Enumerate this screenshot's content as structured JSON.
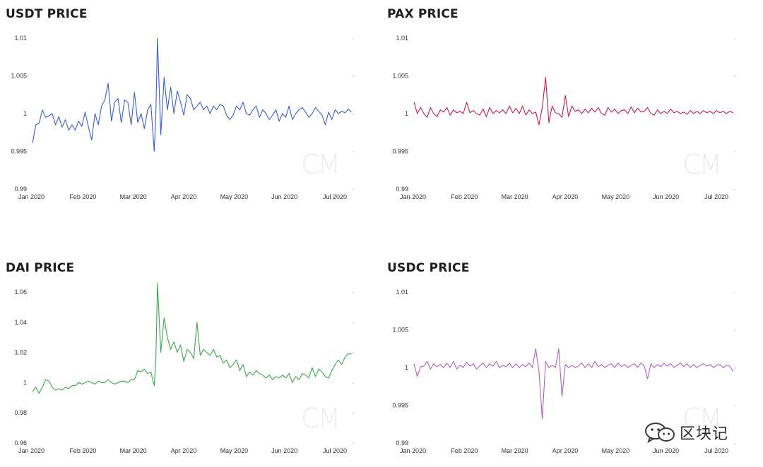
{
  "chart_data": [
    {
      "type": "line",
      "title": "USDT PRICE",
      "xlabel": "",
      "ylabel": "",
      "color": "#3a5fc8",
      "y_ticks": [
        "1.01",
        "1.005",
        "1",
        "0.995",
        "0.99"
      ],
      "ylim": [
        0.99,
        1.01
      ],
      "x_ticks": [
        "Jan 2020",
        "Feb 2020",
        "Mar 2020",
        "Apr 2020",
        "May 2020",
        "Jun 2020",
        "Jul 2020"
      ],
      "x_range_days": [
        0,
        195
      ],
      "watermark": "CM",
      "series": [
        {
          "x": [
            0,
            2,
            4,
            6,
            8,
            10,
            12,
            14,
            16,
            18,
            20,
            22,
            24,
            26,
            28,
            30,
            32,
            34,
            36,
            38,
            40,
            42,
            44,
            46,
            48,
            50,
            52,
            54,
            56,
            58,
            60,
            62,
            64,
            66,
            68,
            70,
            72,
            74,
            75,
            76,
            78,
            80,
            82,
            84,
            86,
            88,
            90,
            92,
            94,
            96,
            98,
            100,
            102,
            104,
            106,
            108,
            110,
            112,
            114,
            116,
            118,
            120,
            122,
            124,
            126,
            128,
            130,
            132,
            134,
            136,
            138,
            140,
            142,
            144,
            146,
            148,
            150,
            152,
            154,
            156,
            158,
            160,
            162,
            164,
            166,
            168,
            170,
            172,
            174,
            176,
            178,
            180,
            182,
            184,
            186,
            188,
            190,
            192,
            194
          ],
          "y": [
            0.9961,
            0.9985,
            0.9987,
            1.0005,
            0.9995,
            0.9997,
            1.0,
            0.9985,
            0.9996,
            0.9982,
            0.9992,
            0.9978,
            0.9985,
            0.9978,
            0.999,
            0.9983,
            1.0002,
            0.9982,
            0.9965,
            1.0,
            0.9985,
            1.001,
            1.0018,
            1.004,
            0.999,
            1.0015,
            1.002,
            0.9988,
            1.0018,
            1.0015,
            0.9985,
            1.0028,
            0.9988,
            1.0,
            0.998,
            1.0005,
            1.0012,
            0.995,
            1.0,
            1.01,
            0.9972,
            1.0048,
            1.0005,
            1.0035,
            1.0,
            1.003,
            1.0015,
            0.9998,
            1.0025,
            1.002,
            1.0005,
            1.001,
            1.0015,
            1.0005,
            1.001,
            1.0,
            1.001,
            1.0005,
            1.0012,
            1.001,
            0.9998,
            0.9992,
            0.9998,
            1.001,
            1.0005,
            1.0015,
            1.0,
            0.9998,
            1.0005,
            1.001,
            0.9995,
            1.0005,
            1.0,
            0.9992,
            0.9998,
            1.0005,
            0.999,
            1.0,
            0.9995,
            1.001,
            0.9992,
            1.0,
            1.0005,
            1.0008,
            1.0002,
            0.9995,
            1.0,
            1.0008,
            1.0003,
            0.9998,
            0.9985,
            1.0002,
            0.9992,
            1.0005,
            1.0,
            1.0003,
            1.0001,
            1.0006,
            1.0002
          ]
        }
      ]
    },
    {
      "type": "line",
      "title": "PAX PRICE",
      "xlabel": "",
      "ylabel": "",
      "color": "#c81e4a",
      "y_ticks": [
        "1.01",
        "1.005",
        "1",
        "0.995",
        "0.99"
      ],
      "ylim": [
        0.99,
        1.01
      ],
      "x_ticks": [
        "Jan 2020",
        "Feb 2020",
        "Mar 2020",
        "Apr 2020",
        "May 2020",
        "Jun 2020",
        "Jul 2020"
      ],
      "x_range_days": [
        0,
        195
      ],
      "watermark": "CM",
      "series": [
        {
          "x": [
            0,
            2,
            4,
            6,
            8,
            10,
            12,
            14,
            16,
            18,
            20,
            22,
            24,
            26,
            28,
            30,
            32,
            34,
            36,
            38,
            40,
            42,
            44,
            46,
            48,
            50,
            52,
            54,
            56,
            58,
            60,
            62,
            64,
            66,
            68,
            70,
            72,
            74,
            76,
            78,
            80,
            82,
            84,
            86,
            88,
            90,
            92,
            94,
            96,
            98,
            100,
            102,
            104,
            106,
            108,
            110,
            112,
            114,
            116,
            118,
            120,
            122,
            124,
            126,
            128,
            130,
            132,
            134,
            136,
            138,
            140,
            142,
            144,
            146,
            148,
            150,
            152,
            154,
            156,
            158,
            160,
            162,
            164,
            166,
            168,
            170,
            172,
            174,
            176,
            178,
            180,
            182,
            184,
            186,
            188,
            190,
            192,
            194
          ],
          "y": [
            1.0015,
            1.0,
            1.0008,
            1.0,
            0.9995,
            1.0008,
            1.0,
            0.9996,
            1.0005,
            1.0002,
            1.0008,
            0.9998,
            1.0005,
            1.0001,
            1.0003,
            1.0,
            1.0015,
            1.0001,
            1.0004,
            1.0,
            0.9998,
            1.0006,
            0.9996,
            1.0008,
            1.0,
            1.0004,
            1.0001,
            1.0005,
            1.0,
            1.001,
            1.0001,
            1.0007,
            1.0,
            1.001,
            0.9998,
            1.0005,
            1.0,
            1.0002,
            0.9985,
            1.0008,
            1.0048,
            0.9988,
            1.001,
            1.0001,
            1.0,
            0.9995,
            1.0024,
            0.9996,
            1.001,
            1.0003,
            1.0005,
            1.0,
            1.0006,
            1.0001,
            1.0007,
            1.0002,
            1.0008,
            1.0,
            0.9998,
            1.0008,
            1.0002,
            1.0006,
            1.0,
            1.0004,
            1.0005,
            1.0,
            1.0009,
            1.0001,
            1.0007,
            1.0002,
            1.0003,
            1.0008,
            1.0,
            0.9998,
            1.0005,
            1.0,
            1.0003,
            1.0,
            1.0006,
            1.0001,
            1.0003,
            1.0,
            1.0002,
            0.9999,
            1.0004,
            1.0,
            1.0003,
            1.0,
            1.0004,
            1.0001,
            1.0003,
            1.0,
            1.0004,
            1.0001,
            1.0003,
            1.0,
            1.0003,
            1.0001
          ]
        }
      ]
    },
    {
      "type": "line",
      "title": "DAI PRICE",
      "xlabel": "",
      "ylabel": "",
      "color": "#3aa84a",
      "y_ticks": [
        "1.06",
        "1.04",
        "1.02",
        "1",
        "0.98",
        "0.96"
      ],
      "ylim": [
        0.96,
        1.06
      ],
      "x_ticks": [
        "Jan 2020",
        "Feb 2020",
        "Mar 2020",
        "Apr 2020",
        "May 2020",
        "Jun 2020",
        "Jul 2020"
      ],
      "x_range_days": [
        0,
        195
      ],
      "watermark": "CM",
      "series": [
        {
          "x": [
            0,
            2,
            4,
            6,
            8,
            10,
            12,
            14,
            16,
            18,
            20,
            22,
            24,
            26,
            28,
            30,
            32,
            34,
            36,
            38,
            40,
            42,
            44,
            46,
            48,
            50,
            52,
            54,
            56,
            58,
            60,
            62,
            64,
            66,
            68,
            70,
            72,
            74,
            75,
            76,
            78,
            80,
            82,
            84,
            86,
            88,
            90,
            92,
            94,
            96,
            98,
            100,
            102,
            104,
            106,
            108,
            110,
            112,
            114,
            116,
            118,
            120,
            122,
            124,
            126,
            128,
            130,
            132,
            134,
            136,
            138,
            140,
            142,
            144,
            146,
            148,
            150,
            152,
            154,
            156,
            158,
            160,
            162,
            164,
            166,
            168,
            170,
            172,
            174,
            176,
            178,
            180,
            182,
            184,
            186,
            188,
            190,
            192,
            194
          ],
          "y": [
            0.994,
            0.997,
            0.993,
            0.997,
            1.002,
            1.001,
            0.997,
            0.995,
            0.996,
            0.995,
            0.997,
            0.996,
            0.998,
            0.998,
            1.0,
            0.999,
            1.0,
            1.001,
            1.0,
            0.999,
            1.001,
            1.0,
            1.0,
            1.002,
            1.0,
            0.999,
            1.0,
            1.001,
            1.001,
            1.0,
            1.002,
            1.002,
            1.008,
            1.007,
            1.009,
            1.006,
            1.007,
            0.998,
            1.015,
            1.066,
            1.02,
            1.043,
            1.03,
            1.022,
            1.027,
            1.02,
            1.025,
            1.014,
            1.022,
            1.02,
            1.016,
            1.04,
            1.018,
            1.022,
            1.02,
            1.018,
            1.022,
            1.017,
            1.018,
            1.013,
            1.015,
            1.01,
            1.012,
            1.015,
            1.008,
            1.012,
            1.004,
            1.007,
            1.005,
            1.008,
            1.006,
            1.005,
            1.003,
            1.005,
            1.002,
            1.004,
            1.003,
            1.005,
            1.003,
            1.006,
            1.0,
            1.004,
            1.002,
            1.006,
            1.005,
            1.003,
            1.01,
            1.004,
            1.009,
            1.007,
            1.004,
            1.003,
            1.008,
            1.012,
            1.015,
            1.012,
            1.017,
            1.019,
            1.019
          ]
        }
      ]
    },
    {
      "type": "line",
      "title": "USDC PRICE",
      "xlabel": "",
      "ylabel": "",
      "color": "#b060c0",
      "y_ticks": [
        "1.01",
        "1.005",
        "1",
        "0.995",
        "0.99"
      ],
      "ylim": [
        0.99,
        1.01
      ],
      "x_ticks": [
        "Jan 2020",
        "Feb 2020",
        "Mar 2020",
        "Apr 2020",
        "May 2020",
        "Jun 2020",
        "Jul 2020"
      ],
      "x_range_days": [
        0,
        195
      ],
      "watermark": "CM",
      "series": [
        {
          "x": [
            0,
            2,
            4,
            6,
            8,
            10,
            12,
            14,
            16,
            18,
            20,
            22,
            24,
            26,
            28,
            30,
            32,
            34,
            36,
            38,
            40,
            42,
            44,
            46,
            48,
            50,
            52,
            54,
            56,
            58,
            60,
            62,
            64,
            66,
            68,
            70,
            72,
            74,
            76,
            78,
            80,
            82,
            84,
            86,
            88,
            90,
            92,
            94,
            96,
            98,
            100,
            102,
            104,
            106,
            108,
            110,
            112,
            114,
            116,
            118,
            120,
            122,
            124,
            126,
            128,
            130,
            132,
            134,
            136,
            138,
            140,
            142,
            144,
            146,
            148,
            150,
            152,
            154,
            156,
            158,
            160,
            162,
            164,
            166,
            168,
            170,
            172,
            174,
            176,
            178,
            180,
            182,
            184,
            186,
            188,
            190,
            192,
            194
          ],
          "y": [
            1.0005,
            0.9988,
            1.0001,
            1.0002,
            1.0008,
            0.9998,
            1.0005,
            1.0001,
            1.0004,
            1.0,
            1.0006,
            1.0,
            1.0008,
            0.9998,
            1.0003,
            1.0,
            1.0007,
            1.0002,
            1.0005,
            0.9998,
            1.0002,
            1.0006,
            1.0,
            1.0005,
            1.0002,
            1.0008,
            1.0,
            1.0003,
            1.0001,
            1.0006,
            1.0,
            1.0005,
            1.0,
            1.0004,
            1.0001,
            1.0006,
            1.0,
            1.0025,
            0.9995,
            0.9932,
            1.0008,
            1.0,
            1.0003,
            1.0,
            1.0025,
            0.9962,
            1.0004,
            1.0,
            1.0003,
            1.0,
            1.0002,
            1.0006,
            1.0,
            1.0005,
            1.0,
            1.0008,
            1.0001,
            1.0004,
            1.0,
            1.0003,
            1.0005,
            1.0,
            1.0006,
            1.0001,
            1.0004,
            1.0,
            1.0003,
            1.0005,
            1.0,
            1.0006,
            1.0002,
            0.9985,
            1.0005,
            1.0,
            1.0004,
            1.0001,
            1.0006,
            1.0002,
            1.0005,
            1.0,
            1.0003,
            1.0006,
            1.0001,
            1.0005,
            1.0,
            1.0004,
            1.0,
            1.0003,
            1.0005,
            1.0002,
            1.0004,
            1.0,
            1.0003,
            1.0004,
            1.0,
            1.0003,
            1.0002,
            0.9995
          ]
        }
      ]
    }
  ],
  "stamp": {
    "text": "区块记",
    "icon": "wechat-icon"
  }
}
